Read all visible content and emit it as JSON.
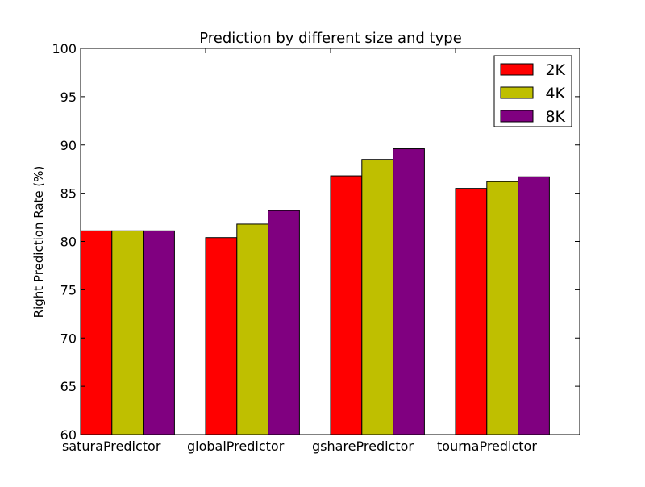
{
  "chart_data": {
    "type": "bar",
    "title": "Prediction by different size and type",
    "xlabel": "",
    "ylabel": "Right Prediction Rate (%)",
    "categories": [
      "saturaPredictor",
      "globalPredictor",
      "gsharePredictor",
      "tournaPredictor"
    ],
    "series": [
      {
        "name": "2K",
        "color": "#ff0000",
        "values": [
          81.1,
          80.4,
          86.8,
          85.5
        ]
      },
      {
        "name": "4K",
        "color": "#bfbf00",
        "values": [
          81.1,
          81.8,
          88.5,
          86.2
        ]
      },
      {
        "name": "8K",
        "color": "#800080",
        "values": [
          81.1,
          83.2,
          89.6,
          86.7
        ]
      }
    ],
    "ylim": [
      60,
      100
    ],
    "yticks": [
      "60",
      "65",
      "70",
      "75",
      "80",
      "85",
      "90",
      "95",
      "100"
    ],
    "grid": false,
    "legend_position": "top-right"
  }
}
